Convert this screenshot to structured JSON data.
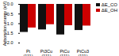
{
  "chart_data": {
    "type": "bar",
    "categories": [
      "Pt\n(111)",
      "Pt3Cu\n(111)",
      "PtCu\n(111)",
      "PtCu3\n(111)"
    ],
    "series": [
      {
        "name": "ΔE_CO",
        "color": "#111111",
        "values": [
          -1.45,
          -1.32,
          -1.58,
          -1.35
        ]
      },
      {
        "name": "ΔE_OH",
        "color": "#cc0000",
        "values": [
          -1.22,
          -1.05,
          -1.1,
          -1.12
        ]
      }
    ],
    "ylabel": "Adsorption energy (eV)",
    "ylim": [
      -2.0,
      0.0
    ],
    "yticks": [
      {
        "value": -2.0,
        "label": "−2.0"
      },
      {
        "value": -1.5,
        "label": "−1.5"
      },
      {
        "value": -1.0,
        "label": "−1.0"
      },
      {
        "value": -0.5,
        "label": "−0.5"
      },
      {
        "value": 0.0,
        "label": "0.0"
      }
    ],
    "legend": "upper right",
    "grid": false
  }
}
